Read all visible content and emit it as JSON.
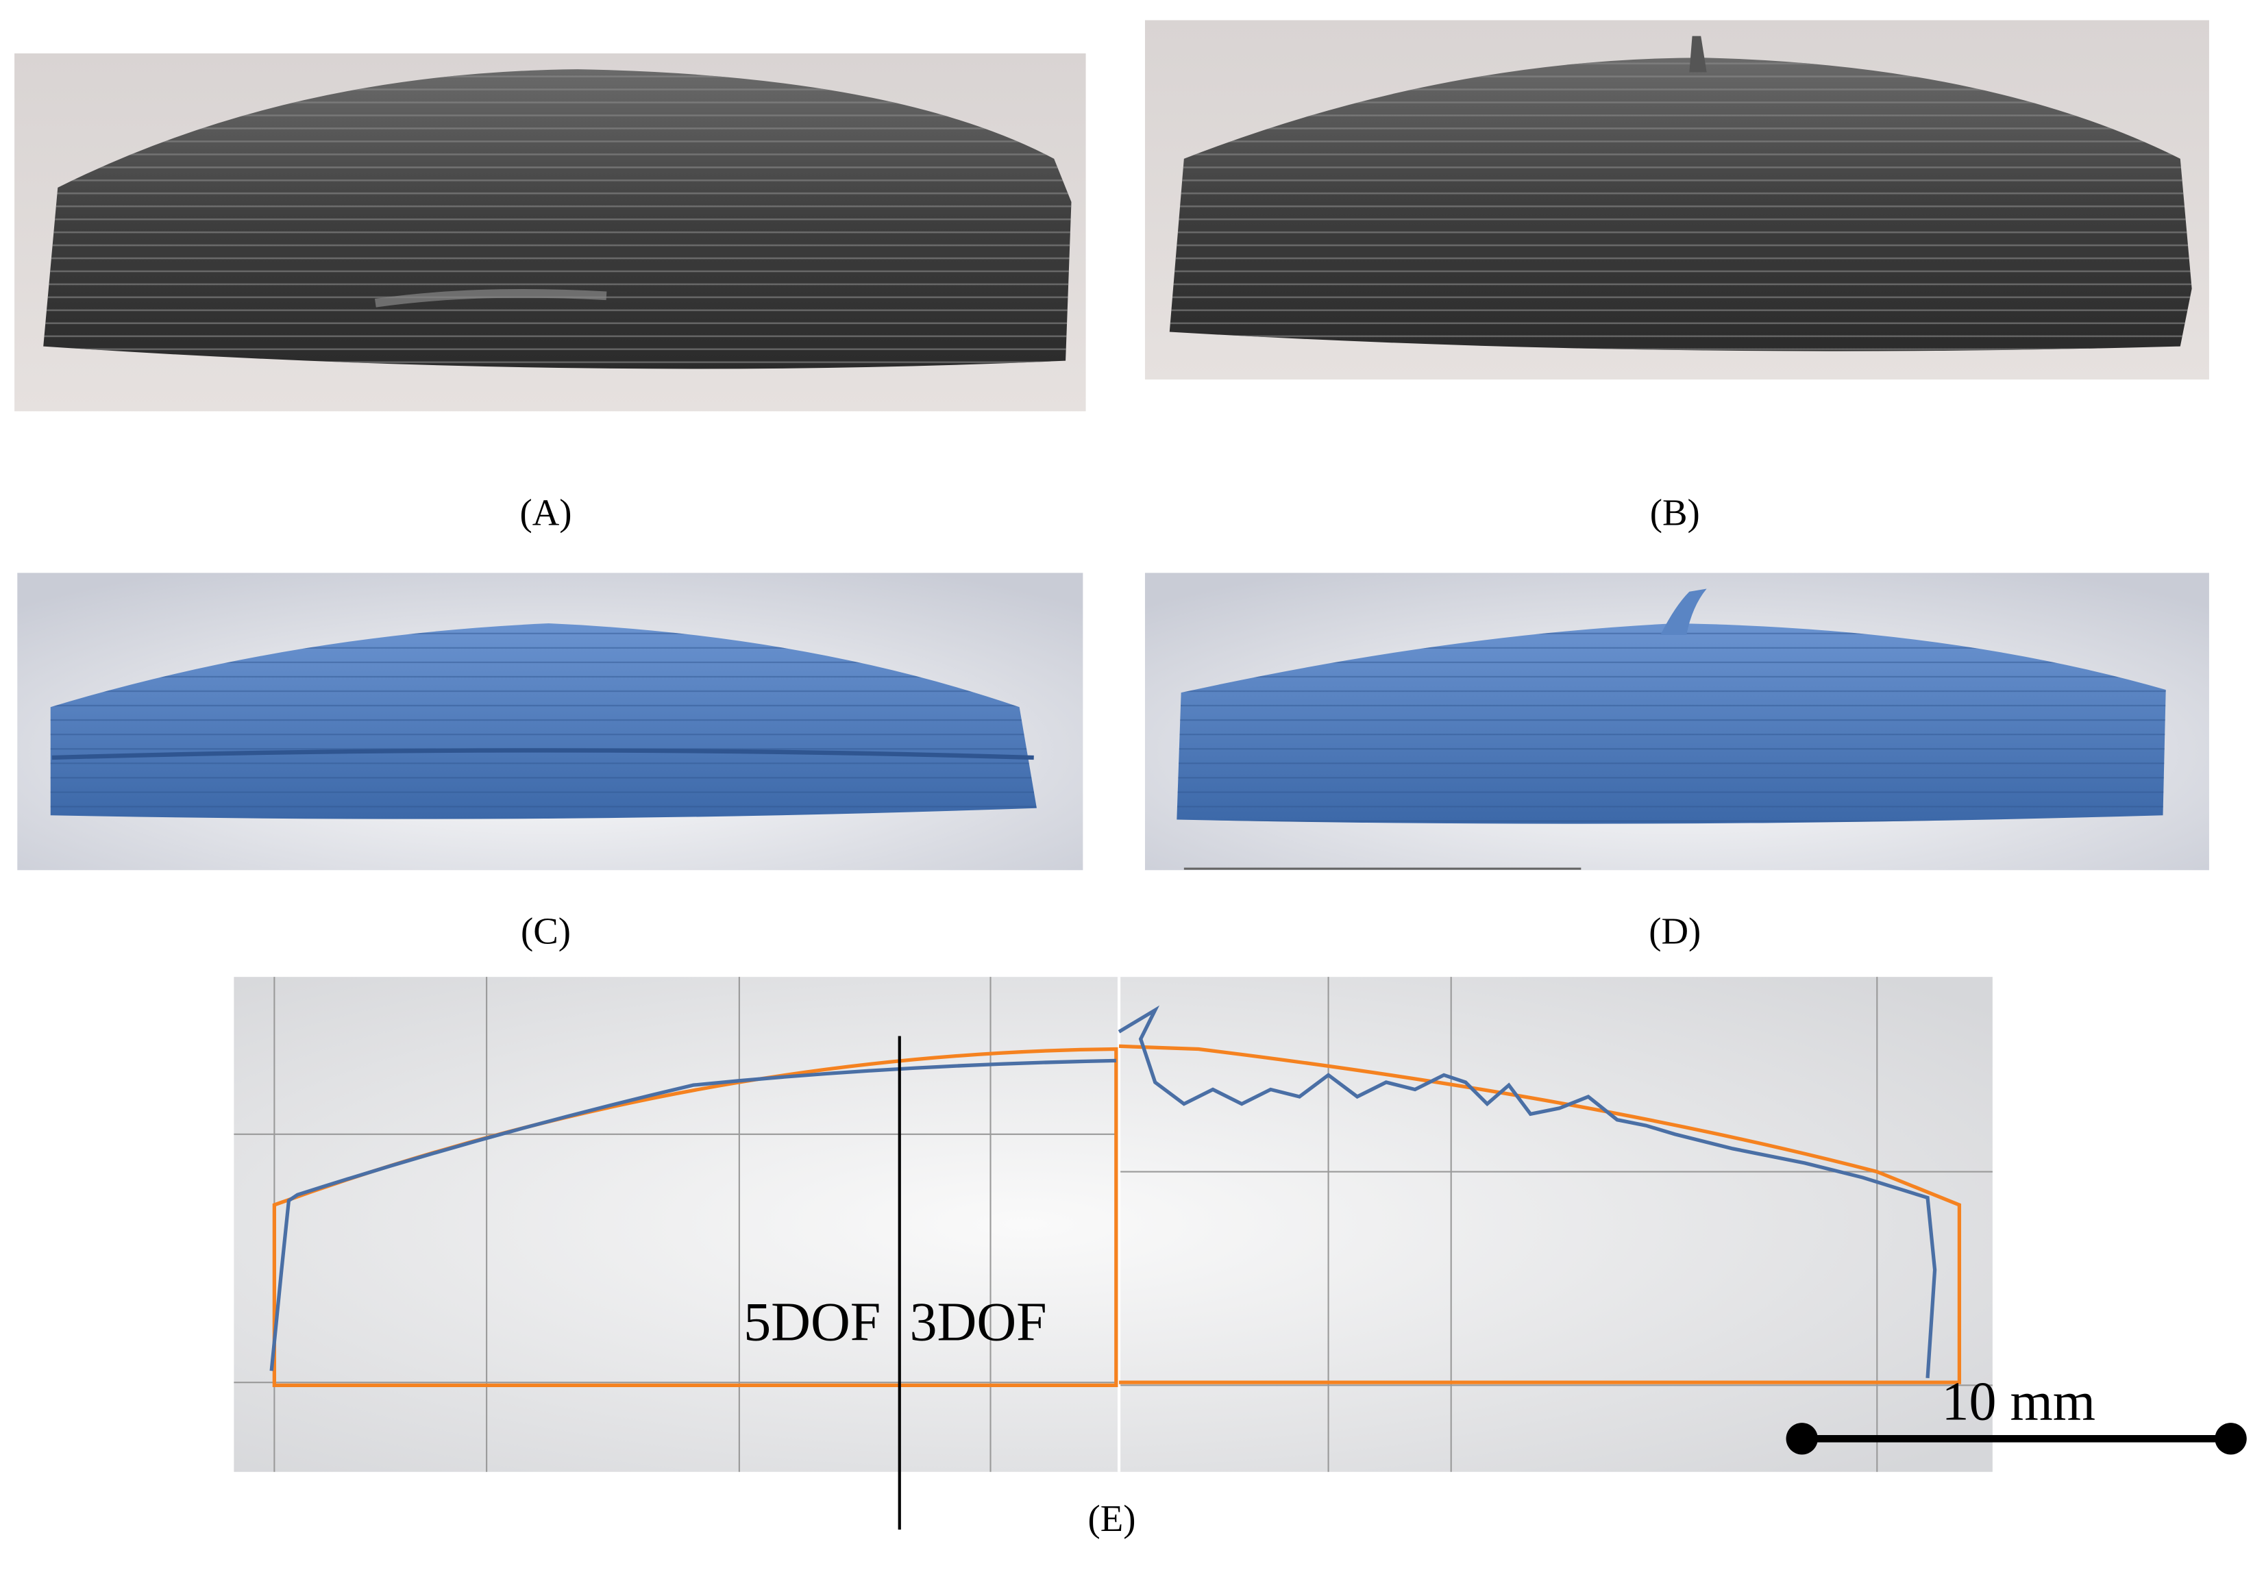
{
  "panels": [
    {
      "label": "(A)"
    },
    {
      "label": "(B)"
    },
    {
      "label": "(C)"
    },
    {
      "label": "(D)"
    },
    {
      "label": "(E)"
    }
  ],
  "annotations": {
    "left_method": "5DOF",
    "right_method": "3DOF",
    "scale_bar": "10 mm"
  }
}
